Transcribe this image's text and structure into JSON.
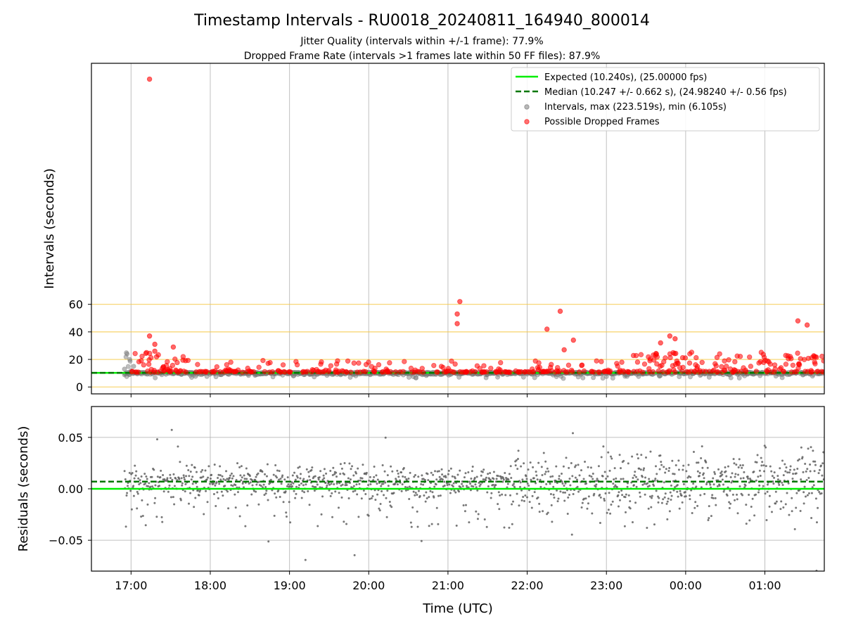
{
  "chart_data": [
    {
      "type": "scatter",
      "title": "Timestamp Intervals - RU0018_20240811_164940_800014",
      "subtitle_lines": [
        "Jitter Quality (intervals within +/-1 frame): 77.9%",
        "Dropped Frame Rate (intervals >1 frames late within 50 FF files): 87.9%"
      ],
      "xlabel": "Time (UTC)",
      "ylabel": "Intervals (seconds)",
      "x_ticks": [
        "17:00",
        "18:00",
        "19:00",
        "20:00",
        "21:00",
        "22:00",
        "23:00",
        "00:00",
        "01:00"
      ],
      "x_range_hours_after_1600": [
        0.5,
        9.75
      ],
      "y_ticks": [
        0,
        20,
        40,
        60
      ],
      "ylim": [
        -5,
        235
      ],
      "reference_lines_y": [
        0,
        20,
        40,
        60
      ],
      "grid": "vertical",
      "legend_position": "top-right",
      "legend": [
        "Expected (10.240s), (25.00000 fps)",
        "Median (10.247 +/- 0.662 s), (24.98240 +/- 0.56 fps)",
        "Intervals, max (223.519s), min (6.105s)",
        "Possible Dropped Frames"
      ],
      "expected_interval": 10.24,
      "median_interval": 10.247,
      "colors": {
        "expected": "#00ee00",
        "median": "#007700",
        "intervals": "#808080",
        "dropped": "#ff0000",
        "reference": "#f5c842"
      },
      "series": [
        {
          "name": "Possible Dropped Frames",
          "notable_points": [
            {
              "x": "17:14",
              "y": 223.5
            },
            {
              "x": "17:14",
              "y": 37
            },
            {
              "x": "17:18",
              "y": 31
            },
            {
              "x": "17:18",
              "y": 26
            },
            {
              "x": "17:32",
              "y": 29
            },
            {
              "x": "21:09",
              "y": 62
            },
            {
              "x": "21:07",
              "y": 53
            },
            {
              "x": "21:07",
              "y": 46
            },
            {
              "x": "22:15",
              "y": 42
            },
            {
              "x": "22:25",
              "y": 55
            },
            {
              "x": "22:35",
              "y": 34
            },
            {
              "x": "22:28",
              "y": 27
            },
            {
              "x": "23:41",
              "y": 32
            },
            {
              "x": "23:48",
              "y": 37
            },
            {
              "x": "23:52",
              "y": 35
            },
            {
              "x": "01:25",
              "y": 48
            },
            {
              "x": "01:32",
              "y": 45
            }
          ]
        }
      ]
    },
    {
      "type": "scatter",
      "xlabel": "Time (UTC)",
      "ylabel": "Residuals (seconds)",
      "x_ticks": [
        "17:00",
        "18:00",
        "19:00",
        "20:00",
        "21:00",
        "22:00",
        "23:00",
        "00:00",
        "01:00"
      ],
      "y_ticks": [
        "0.05",
        "0.00",
        "−0.05"
      ],
      "y_tick_values": [
        0.05,
        0.0,
        -0.05
      ],
      "ylim": [
        -0.08,
        0.08
      ],
      "grid": "both",
      "expected_residual": 0.0,
      "median_residual": 0.007
    }
  ]
}
